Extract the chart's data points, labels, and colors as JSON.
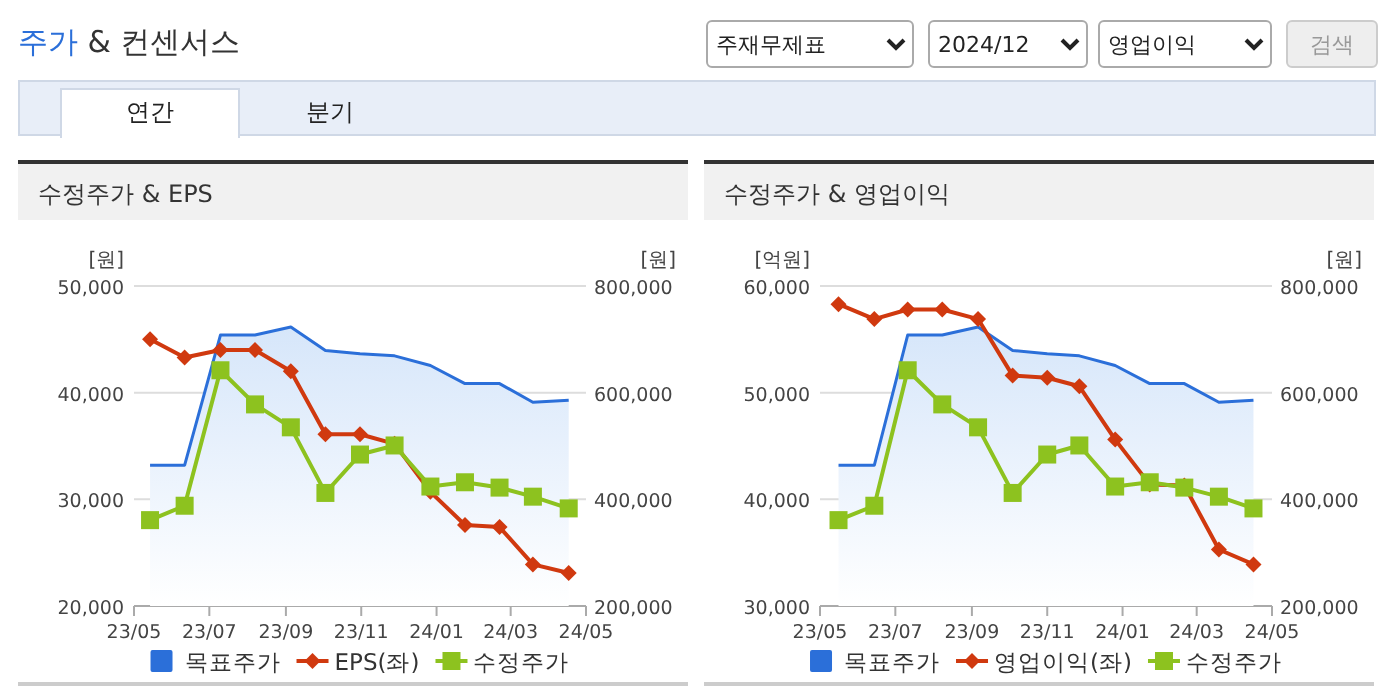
{
  "chart_data": [
    {
      "type": "other",
      "title": "주가 & 컨센서스",
      "annotations": [
        "주재무제표",
        "2024/12",
        "영업이익",
        "검색",
        "연간",
        "분기"
      ]
    },
    {
      "type": "line",
      "title": "수정주가 & EPS",
      "ylabel": "[원]",
      "y2label": "[원]",
      "x": [
        "2023-05-14",
        "2023-06-11",
        "2023-07-10",
        "2023-08-07",
        "2023-09-05",
        "2023-10-03",
        "2023-10-31",
        "2023-11-28",
        "2023-12-27",
        "2024-01-24",
        "2024-02-21",
        "2024-03-19",
        "2024-04-17"
      ],
      "xlim": [
        "2023-05-01",
        "2024-05-01"
      ],
      "xticks": [
        {
          "value": "2023-05",
          "label": "23/05"
        },
        {
          "value": "2023-07",
          "label": "23/07"
        },
        {
          "value": "2023-09",
          "label": "23/09"
        },
        {
          "value": "2023-11",
          "label": "23/11"
        },
        {
          "value": "2024-01",
          "label": "24/01"
        },
        {
          "value": "2024-03",
          "label": "24/03"
        },
        {
          "value": "2024-05",
          "label": "24/05"
        }
      ],
      "ylim": [
        20000,
        50000
      ],
      "yticks": [
        {
          "value": 20000,
          "label": "20,000"
        },
        {
          "value": 30000,
          "label": "30,000"
        },
        {
          "value": 40000,
          "label": "40,000"
        },
        {
          "value": 50000,
          "label": "50,000"
        }
      ],
      "y2lim": [
        200000,
        800000
      ],
      "y2ticks": [
        {
          "value": 200000,
          "label": "200,000"
        },
        {
          "value": 400000,
          "label": "400,000"
        },
        {
          "value": 600000,
          "label": "600,000"
        },
        {
          "value": 800000,
          "label": "800,000"
        }
      ],
      "grid": "y",
      "legend": "bottom",
      "series": [
        {
          "name": "목표주가",
          "type": "area",
          "axis": "y2",
          "color": "#2b6fd9",
          "marker": "none",
          "values": [
            464000,
            464000,
            708000,
            708000,
            723000,
            679000,
            673000,
            669000,
            651000,
            617000,
            617000,
            582000,
            586000
          ]
        },
        {
          "name": "EPS(좌)",
          "type": "line",
          "color": "#d0390f",
          "marker": "diamond",
          "values": [
            45000,
            43300,
            44000,
            44000,
            42000,
            36100,
            36100,
            35200,
            30700,
            27600,
            27400,
            23900,
            23100
          ]
        },
        {
          "name": "수정주가",
          "type": "line",
          "axis": "y2",
          "color": "#8dc21f",
          "marker": "square",
          "values": [
            361000,
            388000,
            642000,
            578000,
            535000,
            412000,
            484000,
            501000,
            424000,
            432000,
            422000,
            405000,
            383000
          ]
        }
      ]
    },
    {
      "type": "line",
      "title": "수정주가 & 영업이익",
      "ylabel": "[억원]",
      "y2label": "[원]",
      "x": [
        "2023-05-16",
        "2023-06-14",
        "2023-07-11",
        "2023-08-08",
        "2023-09-06",
        "2023-10-04",
        "2023-11-01",
        "2023-11-27",
        "2023-12-26",
        "2024-01-23",
        "2024-02-20",
        "2024-03-19",
        "2024-04-16"
      ],
      "xlim": [
        "2023-05-01",
        "2024-05-01"
      ],
      "xticks": [
        {
          "value": "2023-05",
          "label": "23/05"
        },
        {
          "value": "2023-07",
          "label": "23/07"
        },
        {
          "value": "2023-09",
          "label": "23/09"
        },
        {
          "value": "2023-11",
          "label": "23/11"
        },
        {
          "value": "2024-01",
          "label": "24/01"
        },
        {
          "value": "2024-03",
          "label": "24/03"
        },
        {
          "value": "2024-05",
          "label": "24/05"
        }
      ],
      "ylim": [
        30000,
        60000
      ],
      "yticks": [
        {
          "value": 30000,
          "label": "30,000"
        },
        {
          "value": 40000,
          "label": "40,000"
        },
        {
          "value": 50000,
          "label": "50,000"
        },
        {
          "value": 60000,
          "label": "60,000"
        }
      ],
      "y2lim": [
        200000,
        800000
      ],
      "y2ticks": [
        {
          "value": 200000,
          "label": "200,000"
        },
        {
          "value": 400000,
          "label": "400,000"
        },
        {
          "value": 600000,
          "label": "600,000"
        },
        {
          "value": 800000,
          "label": "800,000"
        }
      ],
      "grid": "y",
      "legend": "bottom",
      "series": [
        {
          "name": "목표주가",
          "type": "area",
          "axis": "y2",
          "color": "#2b6fd9",
          "marker": "none",
          "values": [
            464000,
            464000,
            708000,
            708000,
            723000,
            679000,
            673000,
            669000,
            651000,
            617000,
            617000,
            582000,
            586000
          ]
        },
        {
          "name": "영업이익(좌)",
          "type": "line",
          "color": "#d0390f",
          "marker": "diamond",
          "values": [
            58300,
            56900,
            57800,
            57800,
            56900,
            51600,
            51400,
            50600,
            45600,
            41400,
            41300,
            35300,
            33900
          ]
        },
        {
          "name": "수정주가",
          "type": "line",
          "axis": "y2",
          "color": "#8dc21f",
          "marker": "square",
          "values": [
            361000,
            388000,
            642000,
            578000,
            535000,
            412000,
            484000,
            501000,
            424000,
            432000,
            422000,
            405000,
            383000
          ]
        }
      ]
    }
  ]
}
